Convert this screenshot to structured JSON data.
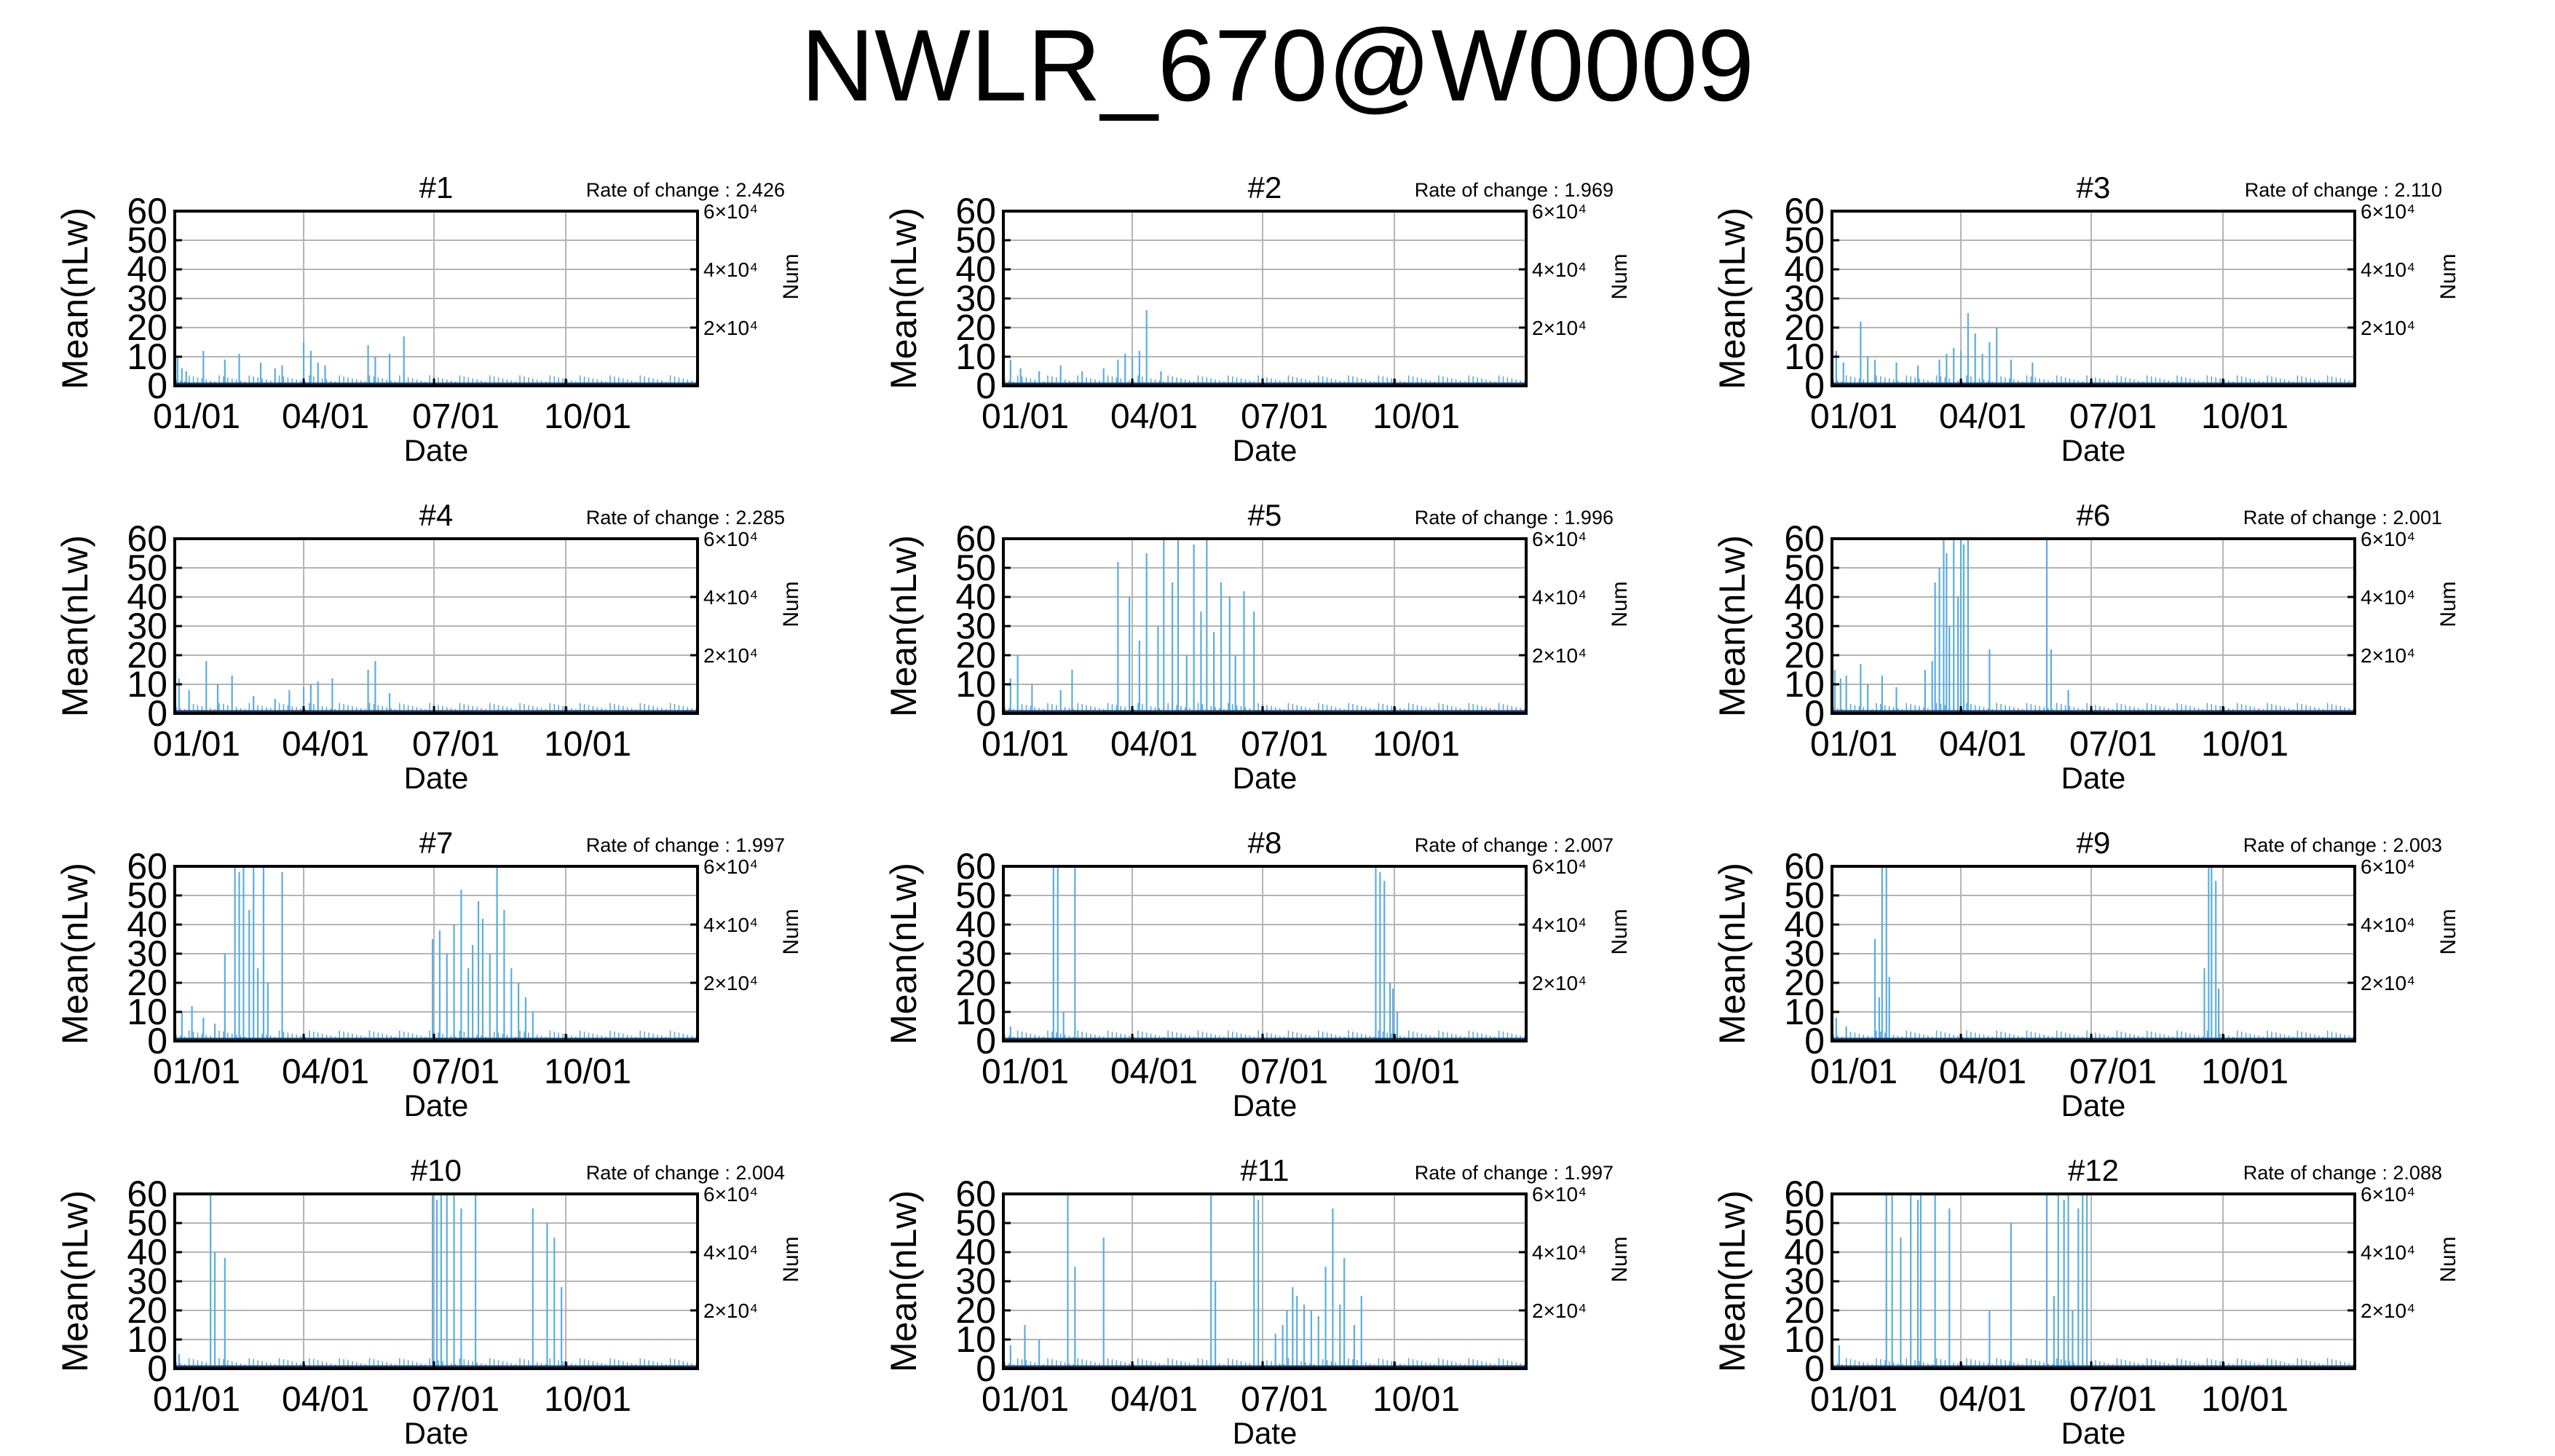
{
  "title": "NWLR_670@W0009",
  "colors": {
    "bar": "#5aaee0",
    "line": "#1a3a6a",
    "grid": "#b4b4b4",
    "axis": "#000000"
  },
  "chart_data": [
    {
      "type": "bar",
      "title": "#1",
      "rate_label": "Rate of change : 2.426",
      "xlabel": "Date",
      "ylabel": "Mean(nLw)",
      "y2label": "Num",
      "ylim": [
        0,
        60
      ],
      "yticks": [
        "0",
        "10",
        "20",
        "30",
        "40",
        "50",
        "60"
      ],
      "y2lim": [
        0,
        60000
      ],
      "y2ticks": [
        "2×10⁴",
        "4×10⁴",
        "6×10⁴"
      ],
      "xlim": [
        0,
        365
      ],
      "xticks": [
        "01/01",
        "04/01",
        "07/01",
        "10/01"
      ],
      "grid": true,
      "x": [
        2,
        5,
        8,
        20,
        35,
        45,
        60,
        70,
        75,
        90,
        95,
        100,
        105,
        135,
        140,
        150,
        160
      ],
      "values": [
        10,
        6,
        5,
        12,
        9,
        11,
        8,
        6,
        7,
        15,
        12,
        8,
        7,
        14,
        10,
        11,
        17
      ]
    },
    {
      "type": "bar",
      "title": "#2",
      "rate_label": "Rate of change : 1.969",
      "xlabel": "Date",
      "ylabel": "Mean(nLw)",
      "y2label": "Num",
      "ylim": [
        0,
        60
      ],
      "yticks": [
        "0",
        "10",
        "20",
        "30",
        "40",
        "50",
        "60"
      ],
      "y2lim": [
        0,
        60000
      ],
      "y2ticks": [
        "2×10⁴",
        "4×10⁴",
        "6×10⁴"
      ],
      "xlim": [
        0,
        365
      ],
      "xticks": [
        "01/01",
        "04/01",
        "07/01",
        "10/01"
      ],
      "grid": true,
      "x": [
        5,
        12,
        25,
        40,
        55,
        70,
        80,
        85,
        90,
        95,
        100,
        110
      ],
      "values": [
        9,
        6,
        5,
        7,
        5,
        6,
        9,
        11,
        10,
        12,
        26,
        5
      ]
    },
    {
      "type": "bar",
      "title": "#3",
      "rate_label": "Rate of change : 2.110",
      "xlabel": "Date",
      "ylabel": "Mean(nLw)",
      "y2label": "Num",
      "ylim": [
        0,
        60
      ],
      "yticks": [
        "0",
        "10",
        "20",
        "30",
        "40",
        "50",
        "60"
      ],
      "y2lim": [
        0,
        60000
      ],
      "y2ticks": [
        "2×10⁴",
        "4×10⁴",
        "6×10⁴"
      ],
      "xlim": [
        0,
        365
      ],
      "xticks": [
        "01/01",
        "04/01",
        "07/01",
        "10/01"
      ],
      "grid": true,
      "x": [
        3,
        8,
        20,
        25,
        30,
        45,
        60,
        75,
        80,
        85,
        90,
        95,
        100,
        105,
        110,
        115,
        125,
        140
      ],
      "values": [
        12,
        8,
        22,
        10,
        9,
        8,
        7,
        9,
        11,
        13,
        12,
        25,
        18,
        11,
        15,
        20,
        9,
        8
      ]
    },
    {
      "type": "bar",
      "title": "#4",
      "rate_label": "Rate of change : 2.285",
      "xlabel": "Date",
      "ylabel": "Mean(nLw)",
      "y2label": "Num",
      "ylim": [
        0,
        60
      ],
      "yticks": [
        "0",
        "10",
        "20",
        "30",
        "40",
        "50",
        "60"
      ],
      "y2lim": [
        0,
        60000
      ],
      "y2ticks": [
        "2×10⁴",
        "4×10⁴",
        "6×10⁴"
      ],
      "xlim": [
        0,
        365
      ],
      "xticks": [
        "01/01",
        "04/01",
        "07/01",
        "10/01"
      ],
      "grid": true,
      "x": [
        3,
        10,
        22,
        30,
        40,
        55,
        70,
        80,
        90,
        95,
        100,
        110,
        135,
        140,
        150
      ],
      "values": [
        12,
        8,
        18,
        10,
        13,
        6,
        5,
        8,
        9,
        10,
        11,
        12,
        15,
        18,
        7
      ]
    },
    {
      "type": "bar",
      "title": "#5",
      "rate_label": "Rate of change : 1.996",
      "xlabel": "Date",
      "ylabel": "Mean(nLw)",
      "y2label": "Num",
      "ylim": [
        0,
        60
      ],
      "yticks": [
        "0",
        "10",
        "20",
        "30",
        "40",
        "50",
        "60"
      ],
      "y2lim": [
        0,
        60000
      ],
      "y2ticks": [
        "2×10⁴",
        "4×10⁴",
        "6×10⁴"
      ],
      "xlim": [
        0,
        365
      ],
      "xticks": [
        "01/01",
        "04/01",
        "07/01",
        "10/01"
      ],
      "grid": true,
      "x": [
        5,
        10,
        20,
        40,
        48,
        80,
        88,
        95,
        100,
        108,
        112,
        118,
        122,
        128,
        133,
        138,
        142,
        147,
        152,
        158,
        162,
        168,
        175
      ],
      "values": [
        12,
        20,
        10,
        8,
        15,
        52,
        40,
        25,
        55,
        30,
        60,
        45,
        60,
        20,
        58,
        35,
        60,
        28,
        45,
        40,
        20,
        42,
        35
      ]
    },
    {
      "type": "bar",
      "title": "#6",
      "rate_label": "Rate of change : 2.001",
      "xlabel": "Date",
      "ylabel": "Mean(nLw)",
      "y2label": "Num",
      "ylim": [
        0,
        60
      ],
      "yticks": [
        "0",
        "10",
        "20",
        "30",
        "40",
        "50",
        "60"
      ],
      "y2lim": [
        0,
        60000
      ],
      "y2ticks": [
        "2×10⁴",
        "4×10⁴",
        "6×10⁴"
      ],
      "xlim": [
        0,
        365
      ],
      "xticks": [
        "01/01",
        "04/01",
        "07/01",
        "10/01"
      ],
      "grid": true,
      "x": [
        2,
        6,
        10,
        20,
        25,
        35,
        45,
        65,
        70,
        72,
        75,
        78,
        80,
        82,
        85,
        88,
        90,
        92,
        95,
        110,
        150,
        153,
        165
      ],
      "values": [
        15,
        12,
        13,
        17,
        10,
        13,
        9,
        15,
        18,
        45,
        50,
        60,
        55,
        30,
        60,
        40,
        60,
        58,
        60,
        22,
        60,
        22,
        8
      ]
    },
    {
      "type": "bar",
      "title": "#7",
      "rate_label": "Rate of change : 1.997",
      "xlabel": "Date",
      "ylabel": "Mean(nLw)",
      "y2label": "Num",
      "ylim": [
        0,
        60
      ],
      "yticks": [
        "0",
        "10",
        "20",
        "30",
        "40",
        "50",
        "60"
      ],
      "y2lim": [
        0,
        60000
      ],
      "y2ticks": [
        "2×10⁴",
        "4×10⁴",
        "6×10⁴"
      ],
      "xlim": [
        0,
        365
      ],
      "xticks": [
        "01/01",
        "04/01",
        "07/01",
        "10/01"
      ],
      "grid": true,
      "x": [
        5,
        12,
        20,
        28,
        35,
        42,
        45,
        48,
        52,
        55,
        58,
        62,
        65,
        75,
        180,
        185,
        190,
        195,
        200,
        205,
        208,
        212,
        215,
        220,
        225,
        230,
        235,
        240,
        245,
        250
      ],
      "values": [
        10,
        12,
        8,
        6,
        30,
        60,
        58,
        60,
        45,
        60,
        25,
        60,
        20,
        58,
        35,
        38,
        30,
        40,
        52,
        25,
        33,
        48,
        42,
        30,
        60,
        45,
        25,
        20,
        15,
        10
      ]
    },
    {
      "type": "bar",
      "title": "#8",
      "rate_label": "Rate of change : 2.007",
      "xlabel": "Date",
      "ylabel": "Mean(nLw)",
      "y2label": "Num",
      "ylim": [
        0,
        60
      ],
      "yticks": [
        "0",
        "10",
        "20",
        "30",
        "40",
        "50",
        "60"
      ],
      "y2lim": [
        0,
        60000
      ],
      "y2ticks": [
        "2×10⁴",
        "4×10⁴",
        "6×10⁴"
      ],
      "xlim": [
        0,
        365
      ],
      "xticks": [
        "01/01",
        "04/01",
        "07/01",
        "10/01"
      ],
      "grid": true,
      "x": [
        5,
        35,
        38,
        42,
        50,
        260,
        263,
        266,
        270,
        272,
        275
      ],
      "values": [
        5,
        60,
        60,
        10,
        60,
        60,
        58,
        55,
        20,
        18,
        10
      ]
    },
    {
      "type": "bar",
      "title": "#9",
      "rate_label": "Rate of change : 2.003",
      "xlabel": "Date",
      "ylabel": "Mean(nLw)",
      "y2label": "Num",
      "ylim": [
        0,
        60
      ],
      "yticks": [
        "0",
        "10",
        "20",
        "30",
        "40",
        "50",
        "60"
      ],
      "y2lim": [
        0,
        60000
      ],
      "y2ticks": [
        "2×10⁴",
        "4×10⁴",
        "6×10⁴"
      ],
      "xlim": [
        0,
        365
      ],
      "xticks": [
        "01/01",
        "04/01",
        "07/01",
        "10/01"
      ],
      "grid": true,
      "x": [
        3,
        10,
        30,
        33,
        35,
        38,
        40,
        260,
        263,
        265,
        268,
        270
      ],
      "values": [
        8,
        5,
        35,
        15,
        60,
        60,
        22,
        25,
        60,
        60,
        55,
        18
      ]
    },
    {
      "type": "bar",
      "title": "#10",
      "rate_label": "Rate of change : 2.004",
      "xlabel": "Date",
      "ylabel": "Mean(nLw)",
      "y2label": "Num",
      "ylim": [
        0,
        60
      ],
      "yticks": [
        "0",
        "10",
        "20",
        "30",
        "40",
        "50",
        "60"
      ],
      "y2lim": [
        0,
        60000
      ],
      "y2ticks": [
        "2×10⁴",
        "4×10⁴",
        "6×10⁴"
      ],
      "xlim": [
        0,
        365
      ],
      "xticks": [
        "01/01",
        "04/01",
        "07/01",
        "10/01"
      ],
      "grid": true,
      "x": [
        3,
        25,
        28,
        35,
        180,
        183,
        186,
        190,
        195,
        200,
        210,
        250,
        260,
        265,
        270
      ],
      "values": [
        5,
        60,
        40,
        38,
        60,
        58,
        60,
        60,
        60,
        55,
        60,
        55,
        50,
        45,
        28
      ]
    },
    {
      "type": "bar",
      "title": "#11",
      "rate_label": "Rate of change : 1.997",
      "xlabel": "Date",
      "ylabel": "Mean(nLw)",
      "y2label": "Num",
      "ylim": [
        0,
        60
      ],
      "yticks": [
        "0",
        "10",
        "20",
        "30",
        "40",
        "50",
        "60"
      ],
      "y2lim": [
        0,
        60000
      ],
      "y2ticks": [
        "2×10⁴",
        "4×10⁴",
        "6×10⁴"
      ],
      "xlim": [
        0,
        365
      ],
      "xticks": [
        "01/01",
        "04/01",
        "07/01",
        "10/01"
      ],
      "grid": true,
      "x": [
        5,
        15,
        25,
        45,
        50,
        70,
        145,
        148,
        175,
        178,
        190,
        195,
        198,
        202,
        205,
        210,
        215,
        220,
        225,
        230,
        235,
        238,
        245,
        250
      ],
      "values": [
        8,
        15,
        10,
        60,
        35,
        45,
        60,
        30,
        60,
        58,
        12,
        15,
        20,
        28,
        25,
        22,
        20,
        18,
        35,
        55,
        22,
        38,
        15,
        25
      ]
    },
    {
      "type": "bar",
      "title": "#12",
      "rate_label": "Rate of change : 2.088",
      "xlabel": "Date",
      "ylabel": "Mean(nLw)",
      "y2label": "Num",
      "ylim": [
        0,
        60
      ],
      "yticks": [
        "0",
        "10",
        "20",
        "30",
        "40",
        "50",
        "60"
      ],
      "y2lim": [
        0,
        60000
      ],
      "y2ticks": [
        "2×10⁴",
        "4×10⁴",
        "6×10⁴"
      ],
      "xlim": [
        0,
        365
      ],
      "xticks": [
        "01/01",
        "04/01",
        "07/01",
        "10/01"
      ],
      "grid": true,
      "x": [
        5,
        38,
        42,
        48,
        55,
        60,
        62,
        72,
        82,
        110,
        125,
        150,
        155,
        158,
        162,
        165,
        168,
        172,
        175,
        178
      ],
      "values": [
        8,
        60,
        60,
        45,
        60,
        58,
        60,
        60,
        55,
        20,
        50,
        60,
        25,
        60,
        58,
        60,
        20,
        55,
        60,
        60
      ]
    }
  ]
}
